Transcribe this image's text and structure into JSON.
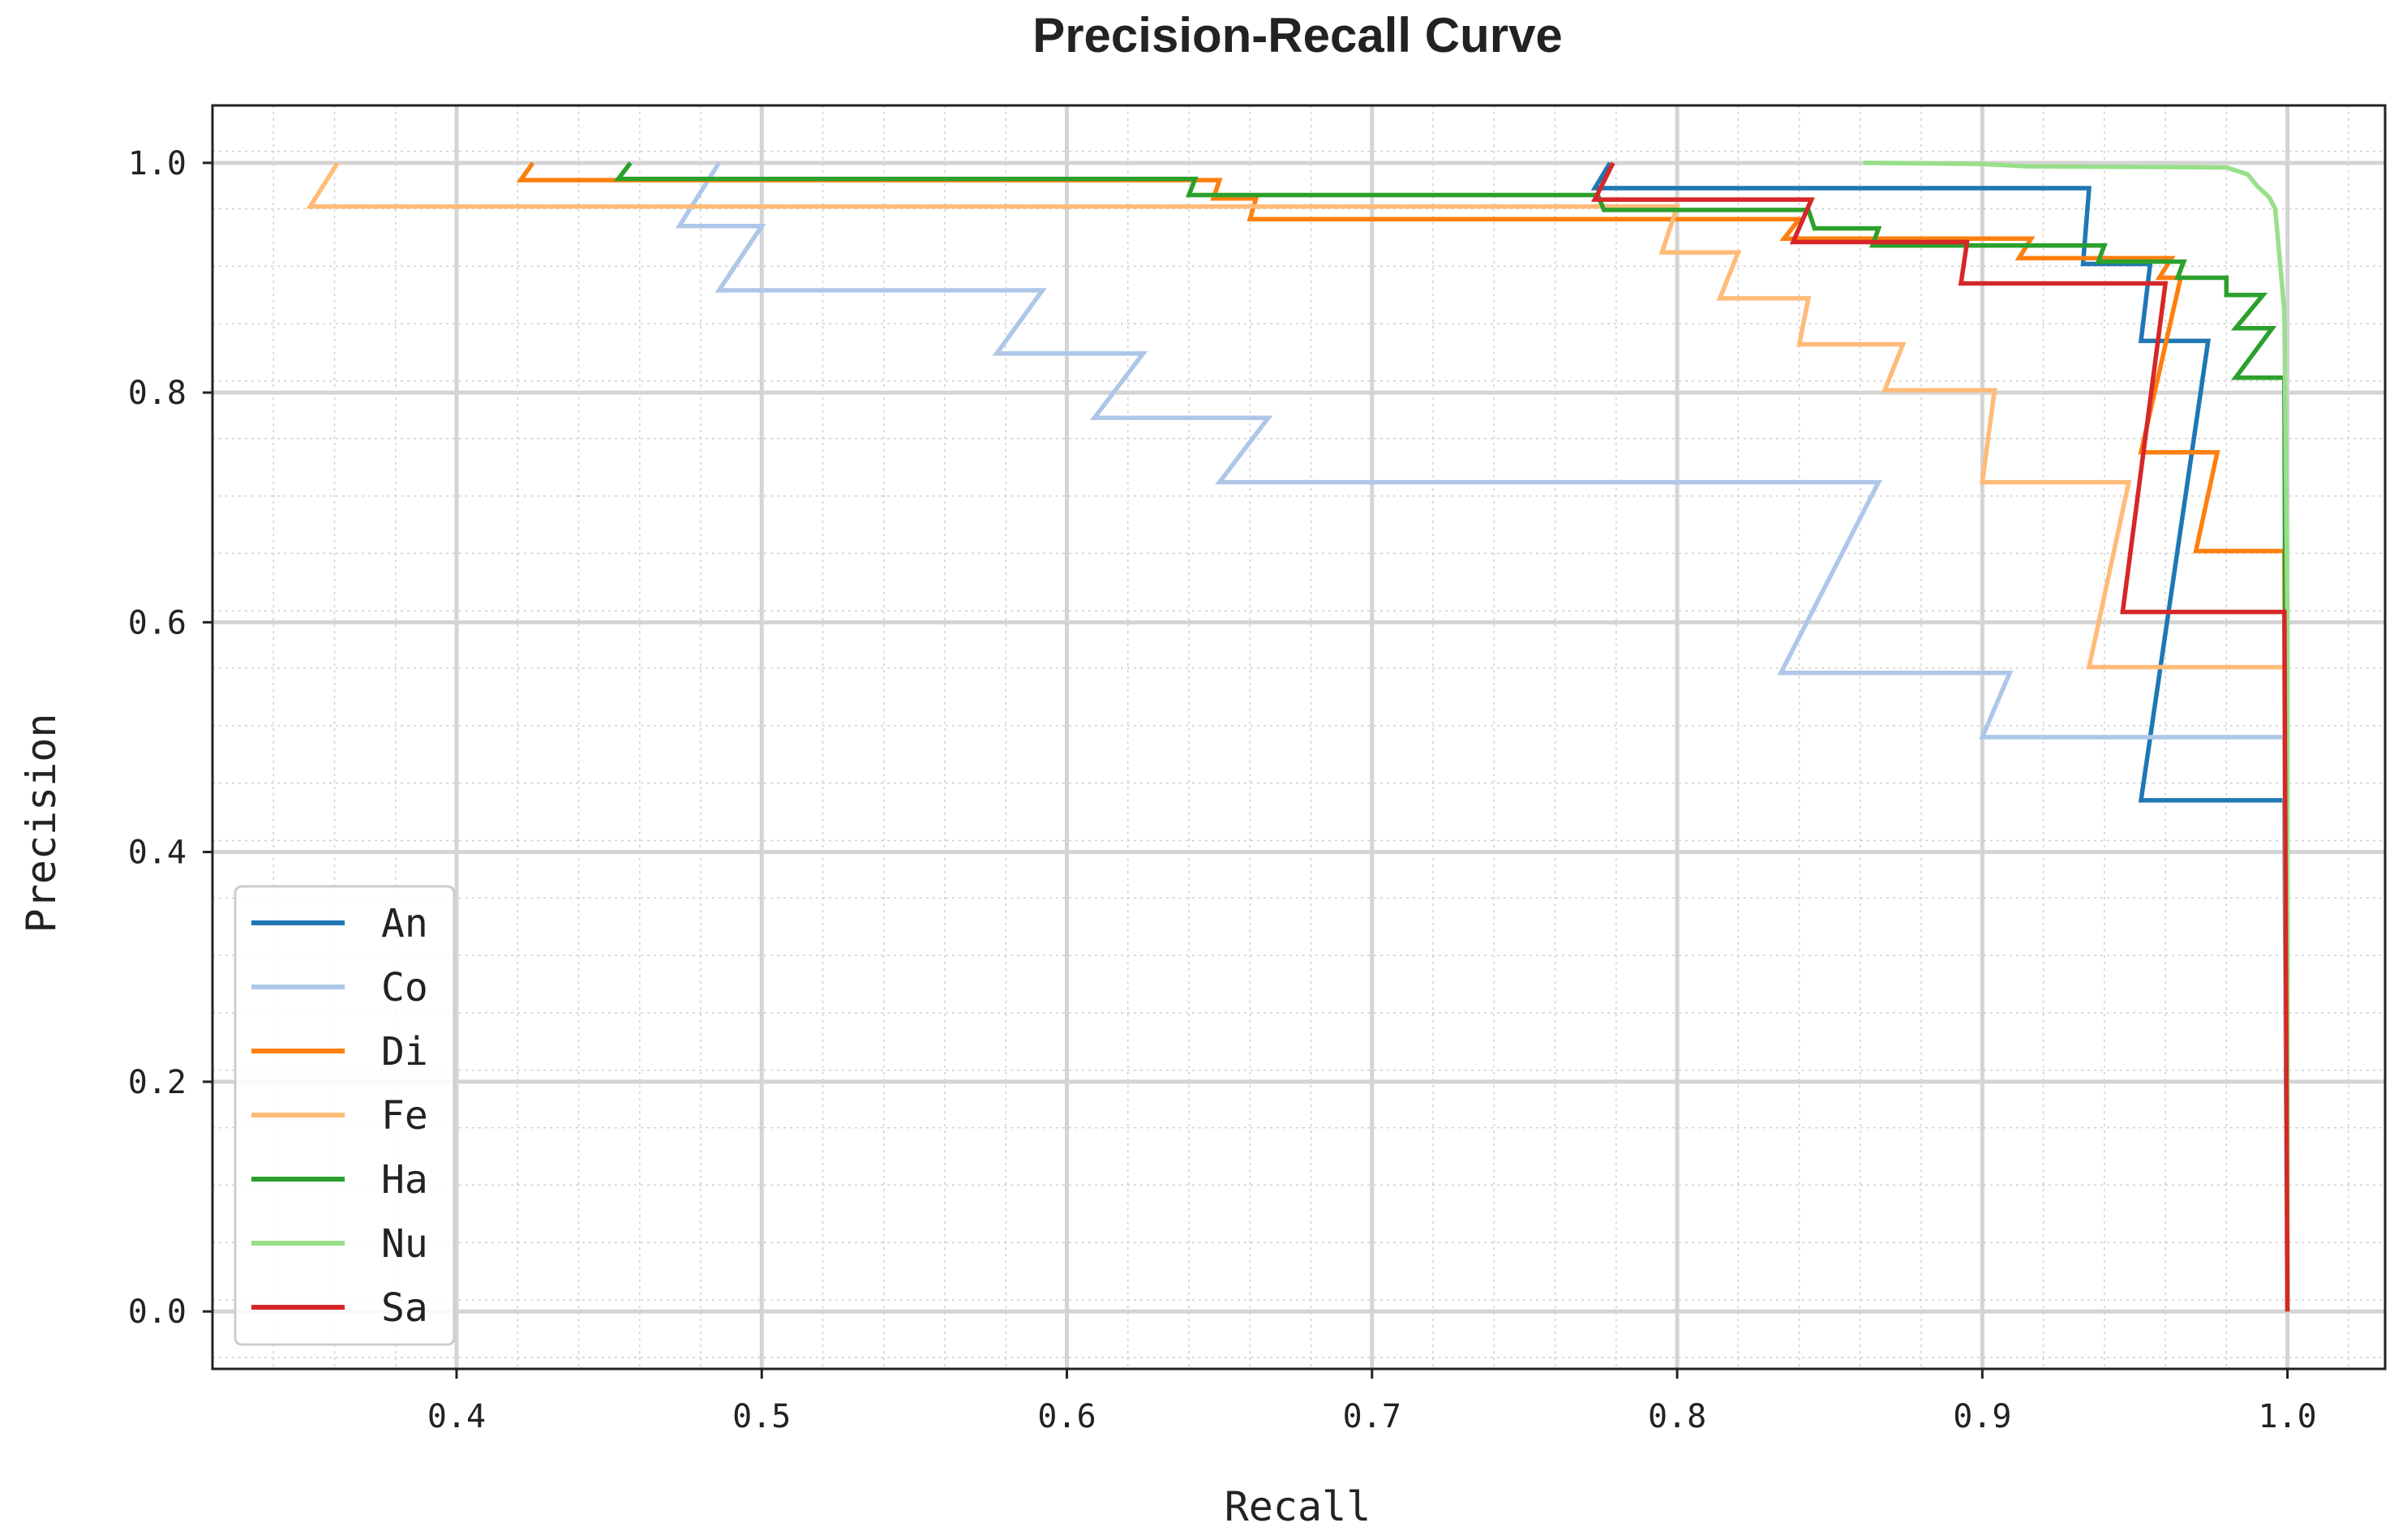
{
  "chart_data": {
    "type": "line",
    "title": "Precision-Recall Curve",
    "xlabel": "Recall",
    "ylabel": "Precision",
    "xlim": [
      0.32,
      1.032
    ],
    "ylim": [
      -0.05,
      1.05
    ],
    "grid": true,
    "legend_position": "lower-left",
    "x_ticks": [
      0.4,
      0.5,
      0.6,
      0.7,
      0.8,
      0.9,
      1.0
    ],
    "x_tick_labels": [
      "0.4",
      "0.5",
      "0.6",
      "0.7",
      "0.8",
      "0.9",
      "1.0"
    ],
    "y_ticks": [
      0.0,
      0.2,
      0.4,
      0.6,
      0.8,
      1.0
    ],
    "y_tick_labels": [
      "0.0",
      "0.2",
      "0.4",
      "0.6",
      "0.8",
      "1.0"
    ],
    "series": [
      {
        "name": "An",
        "color": "#1f77b4",
        "points": [
          [
            0.778,
            1.0
          ],
          [
            0.773,
            0.978
          ],
          [
            0.935,
            0.978
          ],
          [
            0.933,
            0.912
          ],
          [
            0.955,
            0.912
          ],
          [
            0.952,
            0.845
          ],
          [
            0.974,
            0.845
          ],
          [
            0.952,
            0.445
          ],
          [
            0.999,
            0.445
          ],
          [
            1.0,
            0.0
          ]
        ]
      },
      {
        "name": "Co",
        "color": "#aec7e8",
        "points": [
          [
            0.486,
            1.0
          ],
          [
            0.473,
            0.945
          ],
          [
            0.5,
            0.945
          ],
          [
            0.486,
            0.889
          ],
          [
            0.592,
            0.889
          ],
          [
            0.577,
            0.834
          ],
          [
            0.625,
            0.834
          ],
          [
            0.609,
            0.778
          ],
          [
            0.666,
            0.778
          ],
          [
            0.65,
            0.722
          ],
          [
            0.866,
            0.722
          ],
          [
            0.834,
            0.556
          ],
          [
            0.909,
            0.556
          ],
          [
            0.9,
            0.5
          ],
          [
            0.999,
            0.5
          ],
          [
            1.0,
            0.0
          ]
        ]
      },
      {
        "name": "Di",
        "color": "#ff7f0e",
        "points": [
          [
            0.425,
            1.0
          ],
          [
            0.421,
            0.985
          ],
          [
            0.65,
            0.985
          ],
          [
            0.648,
            0.969
          ],
          [
            0.662,
            0.969
          ],
          [
            0.66,
            0.951
          ],
          [
            0.84,
            0.951
          ],
          [
            0.835,
            0.934
          ],
          [
            0.916,
            0.934
          ],
          [
            0.912,
            0.917
          ],
          [
            0.962,
            0.917
          ],
          [
            0.958,
            0.9
          ],
          [
            0.965,
            0.9
          ],
          [
            0.952,
            0.748
          ],
          [
            0.977,
            0.748
          ],
          [
            0.97,
            0.662
          ],
          [
            0.999,
            0.662
          ],
          [
            1.0,
            0.0
          ]
        ]
      },
      {
        "name": "Fe",
        "color": "#ffbb78",
        "points": [
          [
            0.361,
            1.0
          ],
          [
            0.352,
            0.962
          ],
          [
            0.8,
            0.962
          ],
          [
            0.795,
            0.922
          ],
          [
            0.82,
            0.922
          ],
          [
            0.814,
            0.882
          ],
          [
            0.843,
            0.882
          ],
          [
            0.84,
            0.842
          ],
          [
            0.874,
            0.842
          ],
          [
            0.868,
            0.802
          ],
          [
            0.904,
            0.802
          ],
          [
            0.9,
            0.722
          ],
          [
            0.948,
            0.722
          ],
          [
            0.935,
            0.561
          ],
          [
            0.999,
            0.561
          ],
          [
            1.0,
            0.0
          ]
        ]
      },
      {
        "name": "Ha",
        "color": "#2ca02c",
        "points": [
          [
            0.457,
            1.0
          ],
          [
            0.453,
            0.986
          ],
          [
            0.642,
            0.986
          ],
          [
            0.64,
            0.972
          ],
          [
            0.774,
            0.972
          ],
          [
            0.776,
            0.959
          ],
          [
            0.843,
            0.959
          ],
          [
            0.845,
            0.943
          ],
          [
            0.866,
            0.943
          ],
          [
            0.864,
            0.928
          ],
          [
            0.94,
            0.928
          ],
          [
            0.938,
            0.914
          ],
          [
            0.966,
            0.914
          ],
          [
            0.964,
            0.9
          ],
          [
            0.98,
            0.9
          ],
          [
            0.98,
            0.885
          ],
          [
            0.992,
            0.885
          ],
          [
            0.983,
            0.856
          ],
          [
            0.995,
            0.856
          ],
          [
            0.983,
            0.813
          ],
          [
            0.999,
            0.813
          ],
          [
            1.0,
            0.0
          ]
        ]
      },
      {
        "name": "Nu",
        "color": "#98df8a",
        "points": [
          [
            0.861,
            1.0
          ],
          [
            0.9,
            0.999
          ],
          [
            0.915,
            0.997
          ],
          [
            0.98,
            0.996
          ],
          [
            0.987,
            0.99
          ],
          [
            0.99,
            0.98
          ],
          [
            0.994,
            0.97
          ],
          [
            0.996,
            0.96
          ],
          [
            0.997,
            0.93
          ],
          [
            0.998,
            0.9
          ],
          [
            0.999,
            0.87
          ],
          [
            1.0,
            0.6
          ],
          [
            1.0,
            0.0
          ]
        ]
      },
      {
        "name": "Sa",
        "color": "#d62728",
        "points": [
          [
            0.779,
            1.0
          ],
          [
            0.773,
            0.968
          ],
          [
            0.844,
            0.968
          ],
          [
            0.838,
            0.931
          ],
          [
            0.895,
            0.931
          ],
          [
            0.893,
            0.895
          ],
          [
            0.96,
            0.895
          ],
          [
            0.946,
            0.609
          ],
          [
            0.999,
            0.609
          ],
          [
            1.0,
            0.0
          ]
        ]
      }
    ]
  }
}
